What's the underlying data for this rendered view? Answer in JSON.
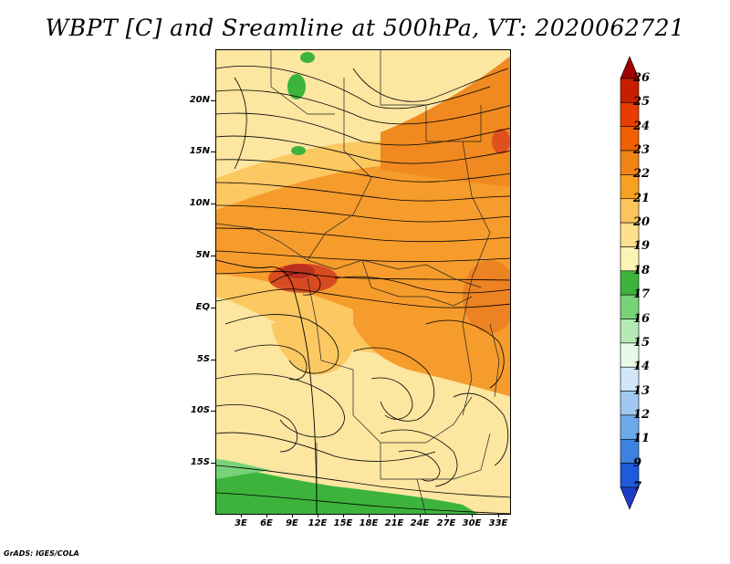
{
  "title": "WBPT [C] and Sreamline at 500hPa, VT: 2020062721",
  "credit": "GrADS: IGES/COLA",
  "map": {
    "region": "Central/Southern Africa",
    "lat_labels": [
      "20N",
      "15N",
      "10N",
      "5N",
      "EQ",
      "5S",
      "10S",
      "15S"
    ],
    "lon_labels": [
      "3E",
      "6E",
      "9E",
      "12E",
      "15E",
      "18E",
      "21E",
      "24E",
      "27E",
      "30E",
      "33E"
    ]
  },
  "colorbar": {
    "levels": [
      "26",
      "25",
      "24",
      "23",
      "22",
      "21",
      "20",
      "19",
      "18",
      "17",
      "16",
      "15",
      "14",
      "13",
      "12",
      "11",
      "9",
      "7"
    ],
    "colors": [
      "#a00000",
      "#c81e00",
      "#e83c00",
      "#f06000",
      "#f08414",
      "#f8a020",
      "#fcc45c",
      "#fce08c",
      "#fcf4b4",
      "#3cb43c",
      "#78d278",
      "#b4ebb4",
      "#e6fae6",
      "#d2e6fa",
      "#a0c8f0",
      "#6eaaeb",
      "#3c82e1",
      "#1e5adc",
      "#1e3cc8"
    ]
  },
  "colors": {
    "deep_orange": "#e8781e",
    "orange": "#f59c2c",
    "light_orange": "#fbb43c",
    "pale_orange": "#fcc862",
    "cream": "#fce6a0",
    "green": "#3cb43c",
    "red": "#d23c1e"
  }
}
